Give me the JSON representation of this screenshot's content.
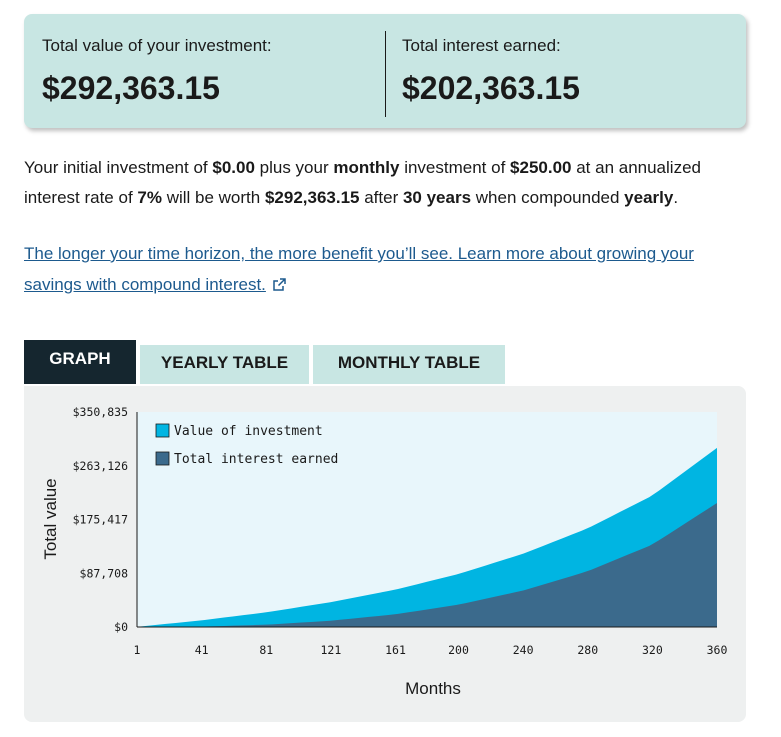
{
  "summary": {
    "total_value_label": "Total value of your investment:",
    "total_value": "$292,363.15",
    "interest_label": "Total interest earned:",
    "interest_value": "$202,363.15"
  },
  "sentence": {
    "p1": "Your initial investment of ",
    "initial": "$0.00",
    "p2": " plus your ",
    "frequency": "monthly",
    "p3": " investment of ",
    "monthly_amount": "$250.00",
    "p4": " at an annualized interest rate of ",
    "rate": "7%",
    "p5": " will be worth ",
    "final_value": "$292,363.15",
    "p6": " after ",
    "years": "30 years",
    "p7": " when compounded ",
    "compounding": "yearly",
    "p8": "."
  },
  "link": {
    "text": "The longer your time horizon, the more benefit you’ll see. Learn more about growing your savings with compound interest."
  },
  "tabs": {
    "graph": "GRAPH",
    "yearly": "YEARLY TABLE",
    "monthly": "MONTHLY TABLE"
  },
  "colors": {
    "value_series": "#00b5e2",
    "interest_series": "#3b6a8c",
    "plot_background": "#e8f6fb",
    "active_tab": "#15262f",
    "card": "#c8e6e3",
    "link": "#1d5a8e"
  },
  "chart_data": {
    "type": "area",
    "xlabel": "Months",
    "ylabel": "Total value",
    "xlim": [
      1,
      360
    ],
    "ylim": [
      0,
      350835
    ],
    "x_ticks": [
      "1",
      "41",
      "81",
      "121",
      "161",
      "200",
      "240",
      "280",
      "320",
      "360"
    ],
    "y_ticks": [
      "$0",
      "$87,708",
      "$175,417",
      "$263,126",
      "$350,835"
    ],
    "series": [
      {
        "name": "Value of investment",
        "x": [
          1,
          41,
          81,
          121,
          161,
          200,
          240,
          280,
          320,
          360
        ],
        "values": [
          250,
          10900,
          24000,
          40500,
          61000,
          86500,
          119500,
          161000,
          214500,
          292363
        ]
      },
      {
        "name": "Total interest earned",
        "x": [
          1,
          41,
          81,
          121,
          161,
          200,
          240,
          280,
          320,
          360
        ],
        "values": [
          0,
          650,
          3750,
          10250,
          20750,
          36500,
          59500,
          91000,
          134500,
          202363
        ]
      }
    ],
    "legend_position": "top-left",
    "grid": false
  }
}
